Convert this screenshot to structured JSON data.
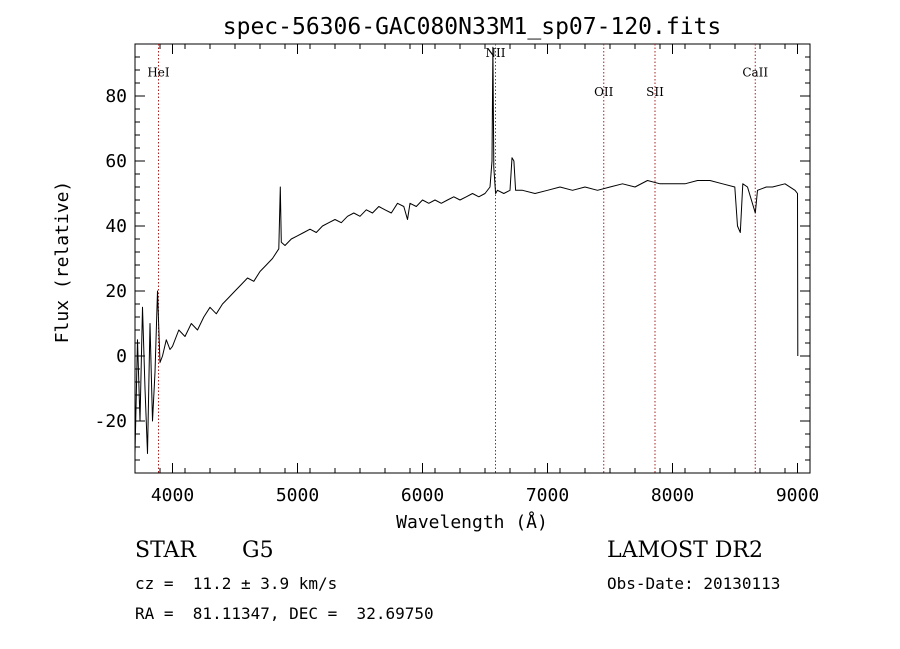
{
  "chart_data": {
    "type": "line",
    "title": "spec-56306-GAC080N33M1_sp07-120.fits",
    "xlabel": "Wavelength (Å)",
    "ylabel": "Flux (relative)",
    "xlim": [
      3700,
      9100
    ],
    "ylim": [
      -36,
      96
    ],
    "x_ticks": [
      4000,
      5000,
      6000,
      7000,
      8000,
      9000
    ],
    "y_ticks": [
      -20,
      0,
      20,
      40,
      60,
      80
    ],
    "grid": false,
    "series": [
      {
        "x": [
          3700,
          3720,
          3740,
          3760,
          3780,
          3800,
          3820,
          3840,
          3860,
          3880,
          3900,
          3920,
          3950,
          3980,
          4000,
          4050,
          4100,
          4150,
          4200,
          4250,
          4300,
          4350,
          4400,
          4450,
          4500,
          4550,
          4600,
          4650,
          4700,
          4750,
          4800,
          4850,
          4862,
          4870,
          4900,
          4950,
          5000,
          5050,
          5100,
          5150,
          5200,
          5250,
          5300,
          5350,
          5400,
          5450,
          5500,
          5550,
          5600,
          5650,
          5700,
          5750,
          5800,
          5850,
          5880,
          5900,
          5950,
          6000,
          6050,
          6100,
          6150,
          6200,
          6250,
          6300,
          6350,
          6400,
          6450,
          6500,
          6540,
          6556,
          6563,
          6570,
          6585,
          6600,
          6650,
          6700,
          6716,
          6731,
          6745,
          6800,
          6900,
          7000,
          7100,
          7200,
          7300,
          7400,
          7500,
          7600,
          7700,
          7800,
          7900,
          8000,
          8100,
          8200,
          8300,
          8400,
          8498,
          8520,
          8542,
          8562,
          8600,
          8662,
          8680,
          8750,
          8800,
          8900,
          8980,
          9000,
          9002
        ],
        "y": [
          -30,
          5,
          -20,
          15,
          -10,
          -30,
          10,
          -20,
          -5,
          20,
          -2,
          0,
          5,
          2,
          3,
          8,
          6,
          10,
          8,
          12,
          15,
          13,
          16,
          18,
          20,
          22,
          24,
          23,
          26,
          28,
          30,
          33,
          52,
          35,
          34,
          36,
          37,
          38,
          39,
          38,
          40,
          41,
          42,
          41,
          43,
          44,
          43,
          45,
          44,
          46,
          45,
          44,
          47,
          46,
          42,
          47,
          46,
          48,
          47,
          48,
          47,
          48,
          49,
          48,
          49,
          50,
          49,
          50,
          52,
          60,
          95,
          58,
          50,
          51,
          50,
          51,
          61,
          60,
          51,
          51,
          50,
          51,
          52,
          51,
          52,
          51,
          52,
          53,
          52,
          54,
          53,
          53,
          53,
          54,
          54,
          53,
          52,
          40,
          38,
          53,
          52,
          44,
          51,
          52,
          52,
          53,
          51,
          50,
          0
        ]
      }
    ],
    "annotations": [
      {
        "label": "HeI",
        "x": 3888,
        "y": 86
      },
      {
        "label": "NII",
        "x": 6584,
        "y": 92
      },
      {
        "label": "OII",
        "x": 7450,
        "y": 80
      },
      {
        "label": "SII",
        "x": 7860,
        "y": 80
      },
      {
        "label": "CaII",
        "x": 8662,
        "y": 86
      }
    ]
  },
  "info": {
    "object_type": "STAR",
    "subclass": "G5",
    "survey": "LAMOST DR2",
    "redshift": "cz =  11.2 ± 3.9 km/s",
    "obs_date": "Obs-Date: 20130113",
    "coords": "RA =  81.11347, DEC =  32.69750"
  },
  "colors": {
    "spectrum": "#000000",
    "line_marker": "#aa2222",
    "axes": "#000000",
    "background": "#ffffff"
  }
}
